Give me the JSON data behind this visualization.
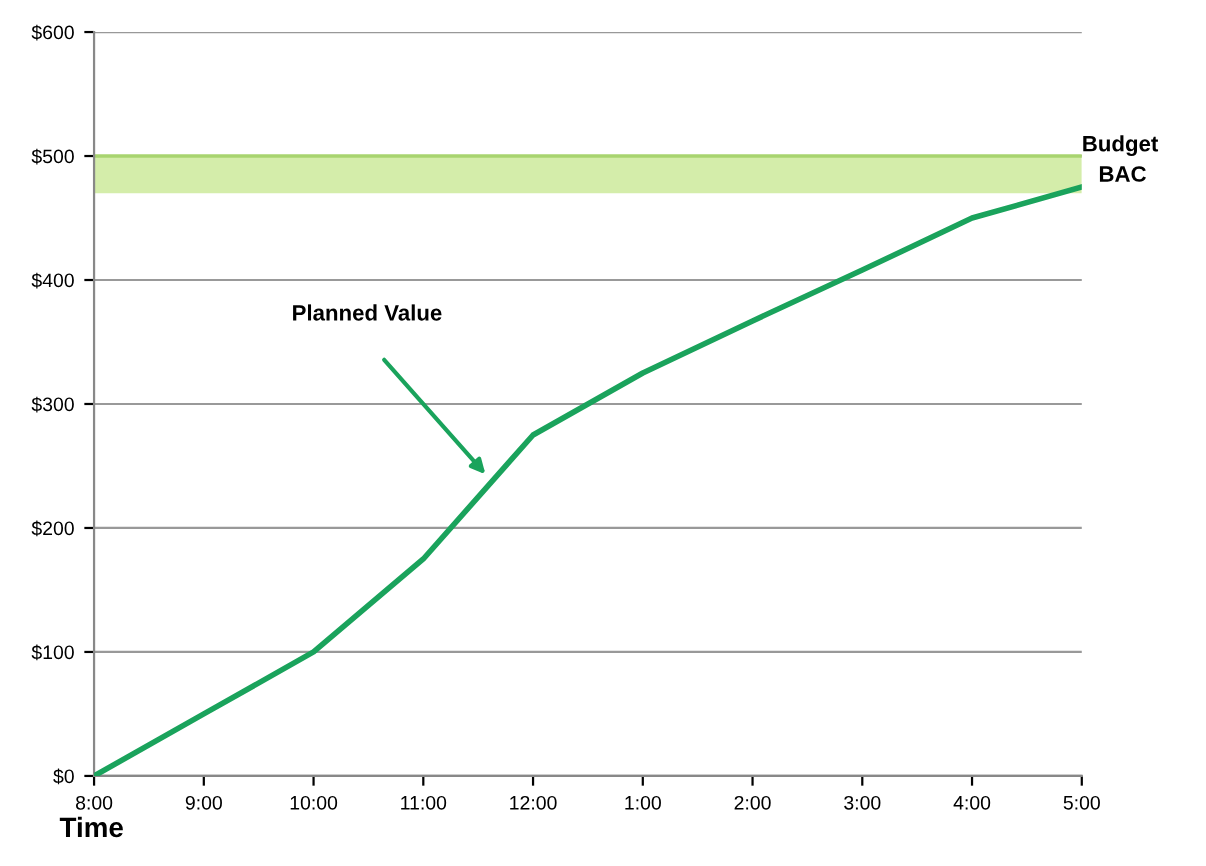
{
  "chart_data": {
    "type": "line",
    "xlabel": "Time",
    "categories": [
      "8:00",
      "9:00",
      "10:00",
      "11:00",
      "12:00",
      "1:00",
      "2:00",
      "3:00",
      "4:00",
      "5:00"
    ],
    "series": [
      {
        "color": "#1aa35c",
        "values": [
          0,
          50,
          100,
          175,
          275,
          325,
          367,
          408,
          450,
          475
        ]
      }
    ],
    "ylim": [
      0,
      600
    ],
    "yticks": [
      {
        "value": 0,
        "label": "$0"
      },
      {
        "value": 100,
        "label": "$100"
      },
      {
        "value": 200,
        "label": "$200"
      },
      {
        "value": 300,
        "label": "$300"
      },
      {
        "value": 400,
        "label": "$400"
      },
      {
        "value": 500,
        "label": "$500"
      },
      {
        "value": 600,
        "label": "$600"
      }
    ],
    "bands": [
      {
        "axis": "y",
        "from": 470,
        "to": 500,
        "color": "#d4edaa"
      }
    ],
    "ref_lines": [
      {
        "axis": "y",
        "value": 500,
        "label": "Budget",
        "color": "#a8d46f"
      }
    ],
    "annotations": [
      "Planned Value",
      {
        "text": "BAC",
        "x": "5:00",
        "y": 475
      }
    ],
    "grid": "y",
    "marker": "none",
    "line_style": "solid",
    "legend": false
  }
}
